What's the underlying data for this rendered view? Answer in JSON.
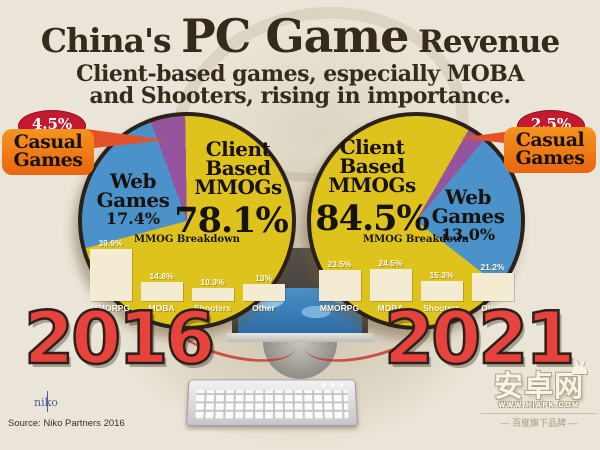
{
  "title": {
    "part1": "China's ",
    "part2": "PC Game",
    "part3": " Revenue"
  },
  "subtitle": {
    "line1": "Client-based games, especially MOBA",
    "line2": "and Shooters, rising in importance."
  },
  "colors": {
    "background": "#eae5d8",
    "text_dark": "#362a1c",
    "pie_yellow": "#dfc31d",
    "pie_blue": "#4b92cb",
    "pie_purple": "#96549e",
    "pie_outline": "#2b2118",
    "bar_cream": "#f3ecd3",
    "badge_red": "#c41a30",
    "callout_orange": "#ef7d1a",
    "year_red": "#e8423c"
  },
  "years": [
    "2016",
    "2021"
  ],
  "panels": [
    {
      "year": "2016",
      "badge_pct": "4.5%",
      "badge_label": "Casual Games",
      "pie": {
        "client_label": "Client Based MMOGs",
        "client_pct": "78.1%",
        "web_label": "Web Games",
        "web_pct": "17.4%"
      },
      "breakdown": {
        "title": "MMOG Breakdown",
        "categories": [
          "MMORPG",
          "MOBA",
          "Shooters",
          "Other"
        ],
        "values": [
          39.9,
          14.8,
          10.3,
          13
        ],
        "value_labels": [
          "39.9%",
          "14.8%",
          "10.3%",
          "13%"
        ]
      }
    },
    {
      "year": "2021",
      "badge_pct": "2.5%",
      "badge_label": "Casual Games",
      "pie": {
        "client_label": "Client Based MMOGs",
        "client_pct": "84.5%",
        "web_label": "Web Games",
        "web_pct": "13.0%"
      },
      "breakdown": {
        "title": "MMOG Breakdown",
        "categories": [
          "MMORPG",
          "MOBA",
          "Shooters",
          "Other"
        ],
        "values": [
          23.5,
          24.5,
          15.3,
          21.2
        ],
        "value_labels": [
          "23.5%",
          "24.5%",
          "15.3%",
          "21.2%"
        ]
      }
    }
  ],
  "footer": {
    "niko": "niko",
    "source": "Source: Niko Partners 2016",
    "site_logo": "安卓网",
    "site_url": "WWW.HIAPK.COM",
    "site_tagline": "— 百度旗下品牌 —"
  },
  "chart_data": [
    {
      "type": "pie",
      "year": "2016",
      "unit": "%",
      "slices": [
        {
          "label": "Client Based MMOGs",
          "value": 78.1,
          "color": "#dfc31d"
        },
        {
          "label": "Web Games",
          "value": 17.4,
          "color": "#4b92cb"
        },
        {
          "label": "Casual Games",
          "value": 4.5,
          "color": "#96549e"
        }
      ]
    },
    {
      "type": "bar",
      "year": "2016",
      "title": "MMOG Breakdown",
      "unit": "%",
      "categories": [
        "MMORPG",
        "MOBA",
        "Shooters",
        "Other"
      ],
      "values": [
        39.9,
        14.8,
        10.3,
        13
      ]
    },
    {
      "type": "pie",
      "year": "2021",
      "unit": "%",
      "slices": [
        {
          "label": "Client Based MMOGs",
          "value": 84.5,
          "color": "#dfc31d"
        },
        {
          "label": "Web Games",
          "value": 13.0,
          "color": "#4b92cb"
        },
        {
          "label": "Casual Games",
          "value": 2.5,
          "color": "#96549e"
        }
      ]
    },
    {
      "type": "bar",
      "year": "2021",
      "title": "MMOG Breakdown",
      "unit": "%",
      "categories": [
        "MMORPG",
        "MOBA",
        "Shooters",
        "Other"
      ],
      "values": [
        23.5,
        24.5,
        15.3,
        21.2
      ]
    }
  ]
}
